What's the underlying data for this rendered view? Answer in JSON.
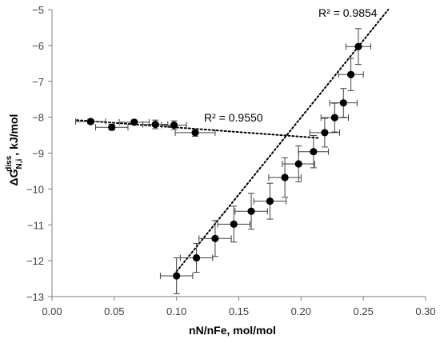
{
  "chart_data": {
    "type": "scatter",
    "xlabel": "nN/nFe, mol/mol",
    "ylabel": {
      "main": "ΔG",
      "sub": "N,i",
      "sup": "diss",
      "rest": ", kJ/mol"
    },
    "xlim": [
      0.0,
      0.3
    ],
    "ylim": [
      -13,
      -5
    ],
    "x_ticks": [
      "0.00",
      "0.05",
      "0.10",
      "0.15",
      "0.20",
      "0.25",
      "0.30"
    ],
    "y_ticks": [
      "−5",
      "−6",
      "−7",
      "−8",
      "−9",
      "−10",
      "−11",
      "−12",
      "−13"
    ],
    "grid": false,
    "series": [
      {
        "points": [
          {
            "x": 0.031,
            "y": -8.12,
            "xerr": 0.012,
            "yerr": 0.06
          },
          {
            "x": 0.048,
            "y": -8.28,
            "xerr": 0.013,
            "yerr": 0.08
          },
          {
            "x": 0.066,
            "y": -8.14,
            "xerr": 0.012,
            "yerr": 0.06
          },
          {
            "x": 0.083,
            "y": -8.2,
            "xerr": 0.01,
            "yerr": 0.12
          },
          {
            "x": 0.098,
            "y": -8.22,
            "xerr": 0.01,
            "yerr": 0.12
          },
          {
            "x": 0.115,
            "y": -8.43,
            "xerr": 0.016,
            "yerr": 0.1
          }
        ],
        "trendline": {
          "x": [
            0.02,
            0.215
          ],
          "y": [
            -8.08,
            -8.58
          ],
          "r2_label": "R² = 0.9550"
        }
      },
      {
        "points": [
          {
            "x": 0.1,
            "y": -12.42,
            "xerr": 0.013,
            "yerr": 0.5
          },
          {
            "x": 0.116,
            "y": -11.92,
            "xerr": 0.013,
            "yerr": 0.4
          },
          {
            "x": 0.131,
            "y": -11.38,
            "xerr": 0.013,
            "yerr": 0.5
          },
          {
            "x": 0.146,
            "y": -10.98,
            "xerr": 0.013,
            "yerr": 0.5
          },
          {
            "x": 0.16,
            "y": -10.62,
            "xerr": 0.013,
            "yerr": 0.5
          },
          {
            "x": 0.175,
            "y": -10.34,
            "xerr": 0.013,
            "yerr": 0.5
          },
          {
            "x": 0.187,
            "y": -9.68,
            "xerr": 0.013,
            "yerr": 0.55
          },
          {
            "x": 0.198,
            "y": -9.3,
            "xerr": 0.013,
            "yerr": 0.5
          },
          {
            "x": 0.21,
            "y": -8.96,
            "xerr": 0.012,
            "yerr": 0.45
          },
          {
            "x": 0.219,
            "y": -8.43,
            "xerr": 0.012,
            "yerr": 0.4
          },
          {
            "x": 0.227,
            "y": -8.01,
            "xerr": 0.011,
            "yerr": 0.4
          },
          {
            "x": 0.234,
            "y": -7.6,
            "xerr": 0.011,
            "yerr": 0.4
          },
          {
            "x": 0.24,
            "y": -6.81,
            "xerr": 0.01,
            "yerr": 0.45
          },
          {
            "x": 0.246,
            "y": -6.03,
            "xerr": 0.01,
            "yerr": 0.5
          }
        ],
        "trendline": {
          "x": [
            0.1,
            0.27
          ],
          "y": [
            -12.3,
            -5.0
          ],
          "r2_label": "R² = 0.9854"
        }
      }
    ]
  }
}
